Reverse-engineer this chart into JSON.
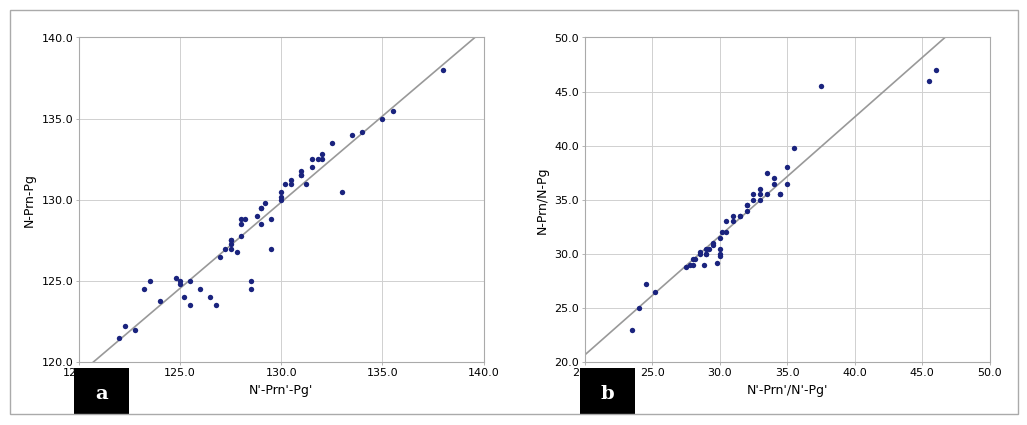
{
  "plot_a": {
    "xlabel": "N'-Prn'-Pg'",
    "ylabel": "N-Prn-Pg",
    "xlim": [
      120.0,
      140.0
    ],
    "ylim": [
      120.0,
      140.0
    ],
    "xticks": [
      120.0,
      125.0,
      130.0,
      135.0,
      140.0
    ],
    "yticks": [
      120.0,
      125.0,
      130.0,
      135.0,
      140.0
    ],
    "label": "a",
    "scatter_x": [
      122.0,
      122.3,
      122.8,
      123.2,
      123.5,
      124.0,
      124.8,
      125.0,
      125.0,
      125.2,
      125.5,
      125.5,
      126.0,
      126.5,
      126.8,
      127.0,
      127.2,
      127.5,
      127.5,
      127.5,
      127.5,
      127.8,
      128.0,
      128.0,
      128.0,
      128.2,
      128.5,
      128.5,
      128.8,
      129.0,
      129.0,
      129.0,
      129.2,
      129.5,
      129.5,
      130.0,
      130.0,
      130.0,
      130.2,
      130.5,
      130.5,
      131.0,
      131.0,
      131.0,
      131.2,
      131.5,
      131.5,
      131.8,
      132.0,
      132.0,
      132.5,
      133.0,
      133.5,
      134.0,
      135.0,
      135.5,
      138.0
    ],
    "scatter_y": [
      121.5,
      122.2,
      122.0,
      124.5,
      125.0,
      123.8,
      125.2,
      125.0,
      124.8,
      124.0,
      123.5,
      125.0,
      124.5,
      124.0,
      123.5,
      126.5,
      127.0,
      127.0,
      127.5,
      127.5,
      127.3,
      126.8,
      127.8,
      128.5,
      128.8,
      128.8,
      125.0,
      124.5,
      129.0,
      128.5,
      129.5,
      129.5,
      129.8,
      127.0,
      128.8,
      130.0,
      130.2,
      130.5,
      131.0,
      131.0,
      131.2,
      131.5,
      131.5,
      131.8,
      131.0,
      132.0,
      132.5,
      132.5,
      132.8,
      132.5,
      133.5,
      130.5,
      134.0,
      134.2,
      135.0,
      135.5,
      138.0
    ]
  },
  "plot_b": {
    "xlabel": "N'-Prn'/N'-Pg'",
    "ylabel": "N-Prn/N-Pg",
    "xlim": [
      20.0,
      50.0
    ],
    "ylim": [
      20.0,
      50.0
    ],
    "xticks": [
      20.0,
      25.0,
      30.0,
      35.0,
      40.0,
      45.0,
      50.0
    ],
    "yticks": [
      20.0,
      25.0,
      30.0,
      35.0,
      40.0,
      45.0,
      50.0
    ],
    "label": "b",
    "scatter_x": [
      23.5,
      24.0,
      24.5,
      25.2,
      27.5,
      27.8,
      28.0,
      28.0,
      28.2,
      28.5,
      28.5,
      28.8,
      29.0,
      29.0,
      29.0,
      29.2,
      29.5,
      29.5,
      29.8,
      30.0,
      30.0,
      30.0,
      30.0,
      30.2,
      30.5,
      30.5,
      31.0,
      31.0,
      31.5,
      31.5,
      32.0,
      32.0,
      32.0,
      32.5,
      32.5,
      33.0,
      33.0,
      33.0,
      33.5,
      33.5,
      34.0,
      34.0,
      34.5,
      34.5,
      35.0,
      35.0,
      35.5,
      37.5,
      45.5,
      46.0
    ],
    "scatter_y": [
      23.0,
      25.0,
      27.2,
      26.5,
      28.8,
      29.0,
      29.5,
      29.0,
      29.5,
      30.0,
      30.2,
      29.0,
      30.0,
      30.5,
      30.0,
      30.5,
      30.8,
      31.0,
      29.2,
      29.8,
      30.0,
      30.5,
      31.5,
      32.0,
      33.0,
      32.0,
      33.0,
      33.5,
      33.5,
      33.5,
      34.0,
      34.5,
      34.5,
      35.0,
      35.5,
      35.5,
      36.0,
      35.0,
      37.5,
      35.5,
      37.0,
      36.5,
      35.5,
      35.5,
      36.5,
      38.0,
      39.8,
      45.5,
      46.0,
      47.0
    ]
  },
  "dot_color": "#1a237e",
  "line_color": "#999999",
  "bg_color": "#ffffff",
  "grid_color": "#d0d0d0",
  "outer_border_color": "#cccccc",
  "label_fontsize": 9,
  "tick_fontsize": 8,
  "dot_size": 15,
  "dot_linewidth": 0
}
